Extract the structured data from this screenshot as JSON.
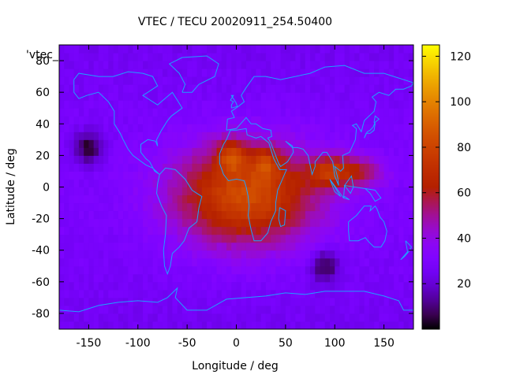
{
  "chart_data": {
    "type": "heatmap",
    "title": "VTEC / TECU 20020911_254.50400",
    "xlabel": "Longitude / deg",
    "ylabel": "Latitude / deg",
    "xlim": [
      -180,
      180
    ],
    "ylim": [
      -90,
      90
    ],
    "xticks": [
      -150,
      -100,
      -50,
      0,
      50,
      100,
      150
    ],
    "yticks": [
      -80,
      -60,
      -40,
      -20,
      0,
      20,
      40,
      60,
      80
    ],
    "key_label": "'vtec_",
    "colorbar": {
      "range": [
        0,
        125
      ],
      "ticks": [
        20,
        40,
        60,
        80,
        100,
        120
      ],
      "palette": "gnuplot pm3d (black-blue-purple-red-orange-yellow)"
    },
    "field_features": {
      "background_tecu": 25,
      "crest": {
        "lon_center": 10,
        "lat_center": -5,
        "peak_tecu": 85,
        "lon_extent": [
          -100,
          140
        ],
        "lat_extent": [
          -60,
          40
        ]
      },
      "hot_spots": [
        {
          "lon": -5,
          "lat": 20,
          "tecu": 100
        },
        {
          "lon": 30,
          "lat": 15,
          "tecu": 92
        },
        {
          "lon": 90,
          "lat": 10,
          "tecu": 80
        }
      ],
      "low_spots": [
        {
          "lon": -150,
          "lat": 25,
          "tecu": 3
        },
        {
          "lon": 90,
          "lat": -50,
          "tecu": 5
        }
      ]
    },
    "coastline_color": "#1fa0ff"
  }
}
